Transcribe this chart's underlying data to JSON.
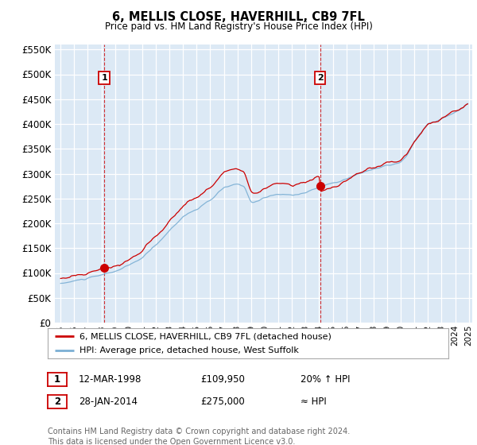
{
  "title": "6, MELLIS CLOSE, HAVERHILL, CB9 7FL",
  "subtitle": "Price paid vs. HM Land Registry's House Price Index (HPI)",
  "legend_line1": "6, MELLIS CLOSE, HAVERHILL, CB9 7FL (detached house)",
  "legend_line2": "HPI: Average price, detached house, West Suffolk",
  "annotation1_date": "12-MAR-1998",
  "annotation1_price": "£109,950",
  "annotation1_note": "20% ↑ HPI",
  "annotation2_date": "28-JAN-2014",
  "annotation2_price": "£275,000",
  "annotation2_note": "≈ HPI",
  "footer": "Contains HM Land Registry data © Crown copyright and database right 2024.\nThis data is licensed under the Open Government Licence v3.0.",
  "red_color": "#cc0000",
  "blue_color": "#7bafd4",
  "bg_color": "#dce9f5",
  "grid_color": "#ffffff",
  "ylim": [
    0,
    560000
  ],
  "yticks": [
    0,
    50000,
    100000,
    150000,
    200000,
    250000,
    300000,
    350000,
    400000,
    450000,
    500000,
    550000
  ],
  "sale1_year": 1998.21,
  "sale1_value": 109950,
  "sale2_year": 2014.08,
  "sale2_value": 275000
}
